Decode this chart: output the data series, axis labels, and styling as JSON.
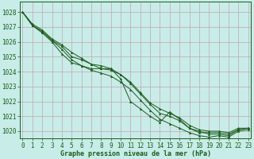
{
  "title": "Graphe pression niveau de la mer (hPa)",
  "ylabel_ticks": [
    1020,
    1021,
    1022,
    1023,
    1024,
    1025,
    1026,
    1027,
    1028
  ],
  "xticks": [
    0,
    1,
    2,
    3,
    4,
    5,
    6,
    7,
    8,
    9,
    10,
    11,
    12,
    13,
    14,
    15,
    16,
    17,
    18,
    19,
    20,
    21,
    22,
    23
  ],
  "xlim": [
    -0.3,
    23.3
  ],
  "ylim": [
    1019.5,
    1028.7
  ],
  "bg_color": "#c8ece8",
  "grid_color": "#c0a0a8",
  "line_color": "#1a5c1a",
  "marker_color": "#1a5c1a",
  "series": [
    [
      1028.0,
      1027.2,
      1026.8,
      1026.2,
      1025.8,
      1025.3,
      1024.9,
      1024.5,
      1024.2,
      1024.1,
      1023.8,
      1023.2,
      1022.5,
      1021.8,
      1021.2,
      1021.0,
      1020.7,
      1020.2,
      1020.0,
      1019.8,
      1019.8,
      1019.7,
      1020.1,
      1020.2
    ],
    [
      1028.0,
      1027.1,
      1026.7,
      1026.1,
      1025.5,
      1024.8,
      1024.4,
      1024.1,
      1023.9,
      1023.7,
      1023.3,
      1022.8,
      1022.1,
      1021.4,
      1020.8,
      1020.5,
      1020.2,
      1019.9,
      1019.7,
      1019.6,
      1019.7,
      1019.6,
      1020.0,
      1020.1
    ],
    [
      1028.0,
      1027.1,
      1026.6,
      1026.0,
      1025.2,
      1024.6,
      1024.4,
      1024.2,
      1024.2,
      1024.2,
      1023.5,
      1022.0,
      1021.5,
      1021.0,
      1020.6,
      1021.3,
      1020.8,
      1020.2,
      1019.9,
      1019.9,
      1019.9,
      1019.8,
      1020.1,
      1020.2
    ],
    [
      1028.0,
      1027.1,
      1026.7,
      1026.1,
      1025.7,
      1025.0,
      1024.8,
      1024.5,
      1024.4,
      1024.2,
      1023.8,
      1023.3,
      1022.6,
      1021.9,
      1021.5,
      1021.2,
      1020.9,
      1020.4,
      1020.1,
      1020.0,
      1020.0,
      1019.9,
      1020.2,
      1020.2
    ]
  ],
  "x": [
    0,
    1,
    2,
    3,
    4,
    5,
    6,
    7,
    8,
    9,
    10,
    11,
    12,
    13,
    14,
    15,
    16,
    17,
    18,
    19,
    20,
    21,
    22,
    23
  ],
  "tick_fontsize": 5.5,
  "label_fontsize": 6.0
}
